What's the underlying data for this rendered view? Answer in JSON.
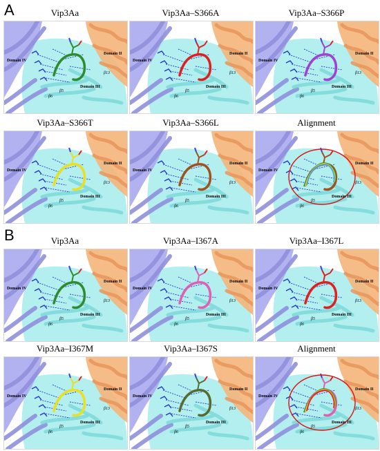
{
  "sections": [
    {
      "letter": "A",
      "panels": [
        {
          "title": "Vip3Aa",
          "residue_color": "#2e8b2e",
          "highlight": false
        },
        {
          "title": "Vip3Aa–S366A",
          "residue_color": "#dd2020",
          "highlight": false
        },
        {
          "title": "Vip3Aa–S366P",
          "residue_color": "#a040d0",
          "highlight": false
        },
        {
          "title": "Vip3Aa–S366T",
          "residue_color": "#e8e020",
          "highlight": false
        },
        {
          "title": "Vip3Aa–S366L",
          "residue_color": "#a0521e",
          "highlight": false
        },
        {
          "title": "Alignment",
          "residue_color": "#a0521e",
          "highlight": true
        }
      ]
    },
    {
      "letter": "B",
      "panels": [
        {
          "title": "Vip3Aa",
          "residue_color": "#2e8b2e",
          "highlight": false
        },
        {
          "title": "Vip3Aa–I367A",
          "residue_color": "#e060b0",
          "highlight": false
        },
        {
          "title": "Vip3Aa–I367L",
          "residue_color": "#dd2020",
          "highlight": false
        },
        {
          "title": "Vip3Aa–I367M",
          "residue_color": "#e8e020",
          "highlight": false
        },
        {
          "title": "Vip3Aa–I367S",
          "residue_color": "#556b2f",
          "highlight": false
        },
        {
          "title": "Alignment",
          "residue_color": "#e060b0",
          "highlight": true
        }
      ]
    }
  ],
  "labels": {
    "domain_ii": "Domain II",
    "domain_iii": "Domain III",
    "domain_iv": "Domain IV",
    "beta6": "β6",
    "beta5": "β5",
    "beta13": "β13"
  },
  "colors": {
    "domain_iv": "#aaaaee",
    "domain_iii": "#a6ecec",
    "domain_ii": "#f4b57a",
    "hbond": "#2233cc",
    "highlight_circle": "#dd1111"
  }
}
